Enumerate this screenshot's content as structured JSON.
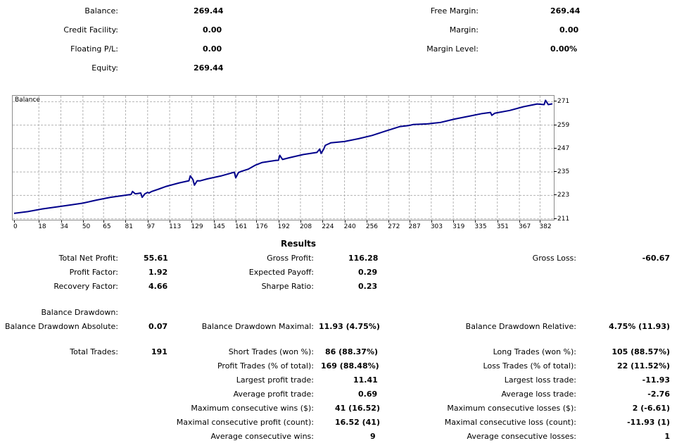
{
  "account": {
    "balance_label": "Balance:",
    "balance_value": "269.44",
    "credit_label": "Credit Facility:",
    "credit_value": "0.00",
    "floating_label": "Floating P/L:",
    "floating_value": "0.00",
    "equity_label": "Equity:",
    "equity_value": "269.44",
    "free_margin_label": "Free Margin:",
    "free_margin_value": "269.44",
    "margin_label": "Margin:",
    "margin_value": "0.00",
    "margin_level_label": "Margin Level:",
    "margin_level_value": "0.00%"
  },
  "chart_data": {
    "type": "line",
    "title": "Balance",
    "x_ticks": [
      "0",
      "18",
      "34",
      "50",
      "65",
      "81",
      "97",
      "113",
      "129",
      "145",
      "161",
      "176",
      "192",
      "208",
      "224",
      "240",
      "256",
      "272",
      "287",
      "303",
      "319",
      "335",
      "351",
      "367",
      "382"
    ],
    "y_ticks": [
      "271",
      "259",
      "247",
      "235",
      "223",
      "211"
    ],
    "xlim": [
      0,
      391
    ],
    "ylim": [
      210.5,
      274
    ],
    "grid": true,
    "line_color": "#00008b",
    "series": [
      {
        "x": [
          0,
          10,
          20,
          30,
          40,
          50,
          60,
          70,
          80,
          85,
          86,
          88,
          90,
          92,
          93,
          95,
          97,
          98,
          100,
          105,
          110,
          120,
          127,
          128,
          130,
          131,
          133,
          135,
          140,
          150,
          160,
          161,
          163,
          165,
          170,
          175,
          180,
          190,
          192,
          193,
          195,
          200,
          210,
          220,
          222,
          223,
          225,
          226,
          230,
          240,
          250,
          260,
          270,
          280,
          287,
          290,
          300,
          310,
          320,
          330,
          340,
          346,
          347,
          349,
          350,
          360,
          370,
          380,
          385,
          386,
          388,
          391
        ],
        "y": [
          213.8,
          214.7,
          216.0,
          217.0,
          218.0,
          219.0,
          220.6,
          222.0,
          223.0,
          223.5,
          225.0,
          223.8,
          224.0,
          224.2,
          222.0,
          223.8,
          224.5,
          224.2,
          225.0,
          226.2,
          227.5,
          229.4,
          230.5,
          233.0,
          231.0,
          228.2,
          230.5,
          230.4,
          231.4,
          232.9,
          234.9,
          232.0,
          234.7,
          235.3,
          236.4,
          238.4,
          239.8,
          240.9,
          241.0,
          243.5,
          241.4,
          242.3,
          243.9,
          245.0,
          246.7,
          244.5,
          246.8,
          248.6,
          249.9,
          250.6,
          252.0,
          253.7,
          256.0,
          258.2,
          258.8,
          259.3,
          259.6,
          260.4,
          262.1,
          263.5,
          264.9,
          265.5,
          264.0,
          265.0,
          265.2,
          266.5,
          268.4,
          269.8,
          269.5,
          271.7,
          269.5,
          269.9
        ]
      }
    ]
  },
  "results": {
    "heading": "Results",
    "total_net_profit_label": "Total Net Profit:",
    "total_net_profit_value": "55.61",
    "gross_profit_label": "Gross Profit:",
    "gross_profit_value": "116.28",
    "gross_loss_label": "Gross Loss:",
    "gross_loss_value": "-60.67",
    "profit_factor_label": "Profit Factor:",
    "profit_factor_value": "1.92",
    "expected_payoff_label": "Expected Payoff:",
    "expected_payoff_value": "0.29",
    "recovery_factor_label": "Recovery Factor:",
    "recovery_factor_value": "4.66",
    "sharpe_ratio_label": "Sharpe Ratio:",
    "sharpe_ratio_value": "0.23",
    "balance_drawdown_label": "Balance Drawdown:",
    "dd_absolute_label": "Balance Drawdown Absolute:",
    "dd_absolute_value": "0.07",
    "dd_maximal_label": "Balance Drawdown Maximal:",
    "dd_maximal_value": "11.93 (4.75%)",
    "dd_relative_label": "Balance Drawdown Relative:",
    "dd_relative_value": "4.75% (11.93)",
    "total_trades_label": "Total Trades:",
    "total_trades_value": "191",
    "short_trades_label": "Short Trades (won %):",
    "short_trades_value": "86 (88.37%)",
    "long_trades_label": "Long Trades (won %):",
    "long_trades_value": "105 (88.57%)",
    "profit_trades_label": "Profit Trades (% of total):",
    "profit_trades_value": "169 (88.48%)",
    "loss_trades_label": "Loss Trades (% of total):",
    "loss_trades_value": "22 (11.52%)",
    "largest_profit_label": "Largest profit trade:",
    "largest_profit_value": "11.41",
    "largest_loss_label": "Largest loss trade:",
    "largest_loss_value": "-11.93",
    "average_profit_label": "Average profit trade:",
    "average_profit_value": "0.69",
    "average_loss_label": "Average loss trade:",
    "average_loss_value": "-2.76",
    "max_consec_wins_label": "Maximum consecutive wins ($):",
    "max_consec_wins_value": "41 (16.52)",
    "max_consec_losses_label": "Maximum consecutive losses ($):",
    "max_consec_losses_value": "2 (-6.61)",
    "maximal_consec_profit_label": "Maximal consecutive profit (count):",
    "maximal_consec_profit_value": "16.52 (41)",
    "maximal_consec_loss_label": "Maximal consecutive loss (count):",
    "maximal_consec_loss_value": "-11.93 (1)",
    "avg_consec_wins_label": "Average consecutive wins:",
    "avg_consec_wins_value": "9",
    "avg_consec_losses_label": "Average consecutive losses:",
    "avg_consec_losses_value": "1"
  }
}
